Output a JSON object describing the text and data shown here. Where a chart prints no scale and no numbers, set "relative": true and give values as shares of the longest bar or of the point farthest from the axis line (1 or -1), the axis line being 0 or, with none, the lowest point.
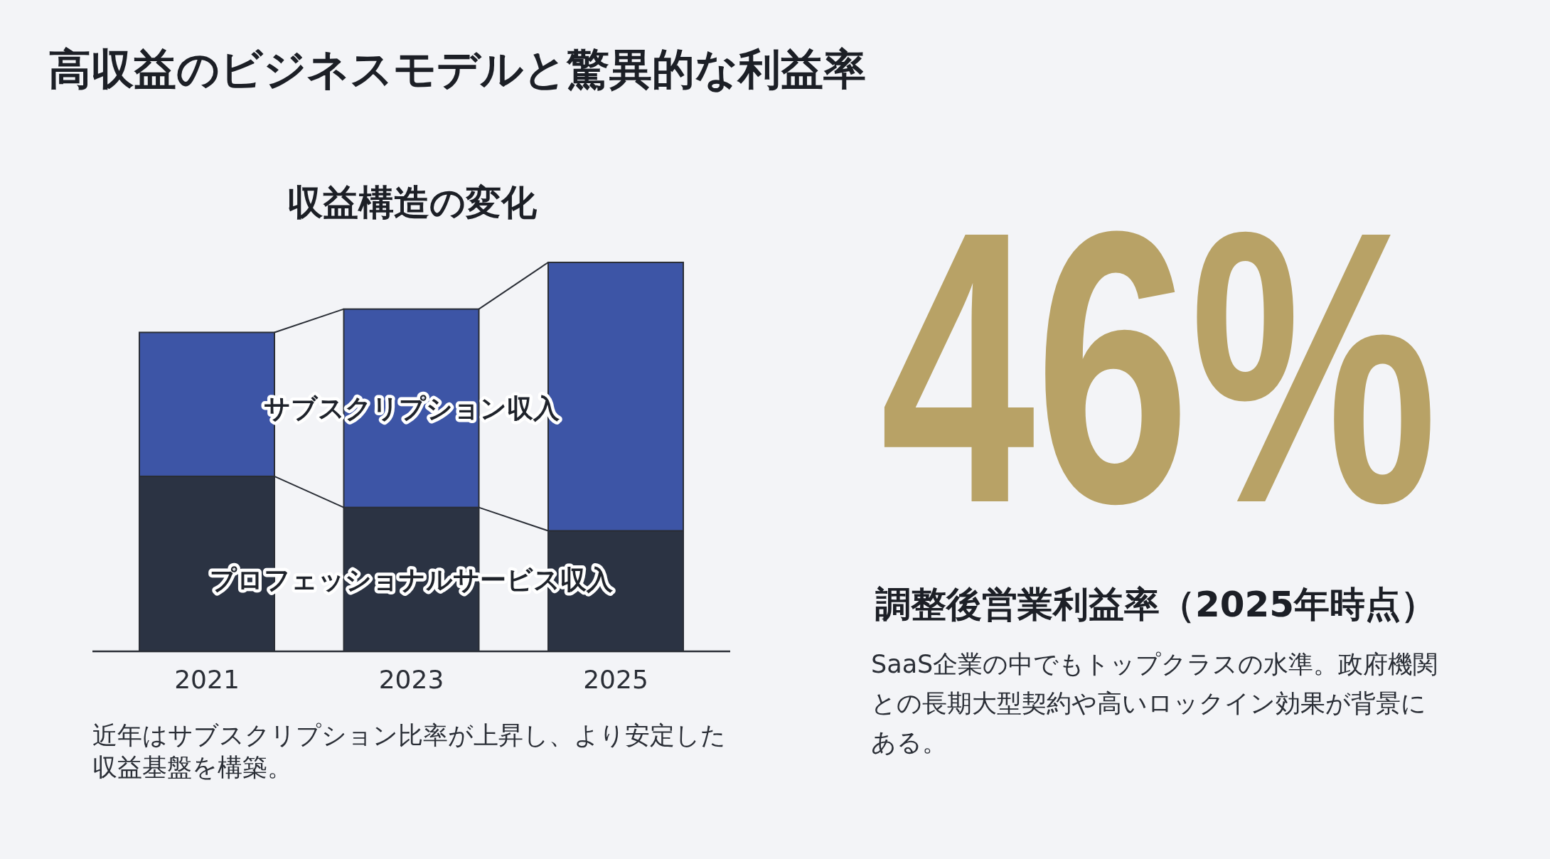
{
  "chart_data": [
    {
      "type": "other",
      "title": "高収益のビジネスモデルと驚異的な利益率"
    },
    {
      "type": "bar",
      "title": "収益構造の変化",
      "categories": [
        "2021",
        "2023",
        "2025"
      ],
      "stacked": true,
      "relative": true,
      "series": [
        {
          "name": "プロフェッショナルサービス収入",
          "color": "#2b3343",
          "values": [
            0.45,
            0.37,
            0.31
          ]
        },
        {
          "name": "サブスクリプション収入",
          "color": "#3d55a6",
          "values": [
            0.37,
            0.51,
            0.69
          ]
        }
      ],
      "annotations": [
        "近年はサブスクリプション比率が上昇し、より安定した収益基盤を構築。"
      ]
    },
    {
      "type": "other",
      "title": "調整後営業利益率（2025年時点）",
      "color": "#b8a266",
      "annotations": [
        "46%",
        "SaaS企業の中でもトップクラスの水準。政府機関との長期大型契約や高いロックイン効果が背景にある。"
      ]
    }
  ]
}
